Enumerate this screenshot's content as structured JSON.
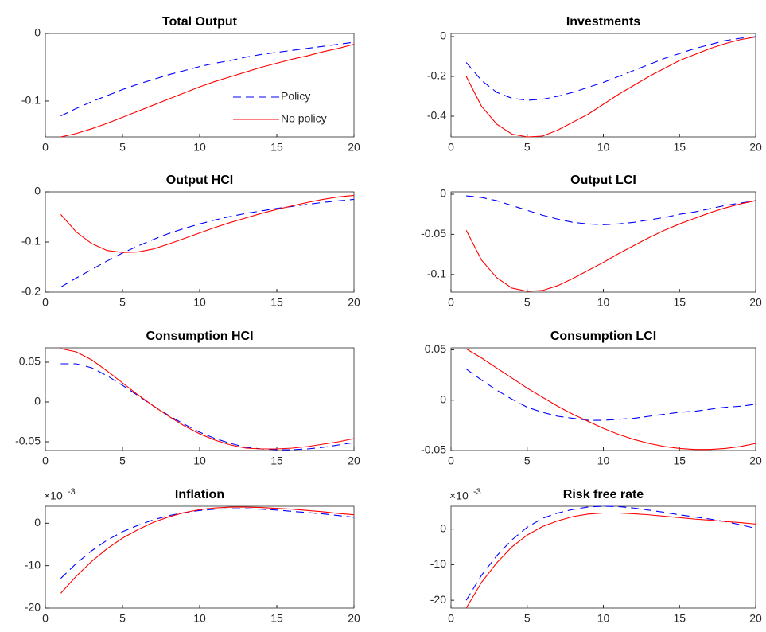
{
  "chart_data": [
    {
      "type": "line",
      "title": "Total Output",
      "x": [
        1,
        2,
        3,
        4,
        5,
        6,
        7,
        8,
        9,
        10,
        11,
        12,
        13,
        14,
        15,
        16,
        17,
        18,
        19,
        20
      ],
      "series": [
        {
          "name": "Policy",
          "color": "#0000ff",
          "dash": "dashed",
          "values": [
            -0.122,
            -0.111,
            -0.101,
            -0.092,
            -0.083,
            -0.075,
            -0.068,
            -0.061,
            -0.055,
            -0.049,
            -0.044,
            -0.04,
            -0.035,
            -0.031,
            -0.028,
            -0.025,
            -0.022,
            -0.019,
            -0.016,
            -0.013
          ]
        },
        {
          "name": "No policy",
          "color": "#ff0000",
          "dash": "solid",
          "values": [
            -0.153,
            -0.148,
            -0.141,
            -0.133,
            -0.124,
            -0.115,
            -0.106,
            -0.097,
            -0.088,
            -0.079,
            -0.071,
            -0.064,
            -0.057,
            -0.05,
            -0.044,
            -0.038,
            -0.033,
            -0.027,
            -0.022,
            -0.016
          ]
        }
      ],
      "xlim": [
        0,
        20
      ],
      "xticks": [
        0,
        5,
        10,
        15,
        20
      ],
      "ylim": [
        -0.153,
        0
      ],
      "yticks": [
        -0.1,
        0
      ],
      "legend": "southeast"
    },
    {
      "type": "line",
      "title": "Investments",
      "x": [
        1,
        2,
        3,
        4,
        5,
        6,
        7,
        8,
        9,
        10,
        11,
        12,
        13,
        14,
        15,
        16,
        17,
        18,
        19,
        20
      ],
      "series": [
        {
          "color": "#0000ff",
          "dash": "dashed",
          "values": [
            -0.13,
            -0.22,
            -0.28,
            -0.31,
            -0.32,
            -0.315,
            -0.3,
            -0.28,
            -0.255,
            -0.23,
            -0.2,
            -0.17,
            -0.14,
            -0.11,
            -0.085,
            -0.06,
            -0.04,
            -0.02,
            -0.008,
            0
          ]
        },
        {
          "color": "#ff0000",
          "dash": "solid",
          "values": [
            -0.2,
            -0.35,
            -0.44,
            -0.49,
            -0.504,
            -0.5,
            -0.47,
            -0.43,
            -0.39,
            -0.34,
            -0.29,
            -0.245,
            -0.2,
            -0.16,
            -0.12,
            -0.09,
            -0.06,
            -0.035,
            -0.015,
            -0.002
          ]
        }
      ],
      "xlim": [
        0,
        20
      ],
      "xticks": [
        0,
        5,
        10,
        15,
        20
      ],
      "ylim": [
        -0.504,
        0.016
      ],
      "yticks": [
        -0.4,
        -0.2,
        0
      ]
    },
    {
      "type": "line",
      "title": "Output HCI",
      "x": [
        1,
        2,
        3,
        4,
        5,
        6,
        7,
        8,
        9,
        10,
        11,
        12,
        13,
        14,
        15,
        16,
        17,
        18,
        19,
        20
      ],
      "series": [
        {
          "color": "#0000ff",
          "dash": "dashed",
          "values": [
            -0.19,
            -0.172,
            -0.155,
            -0.138,
            -0.122,
            -0.108,
            -0.095,
            -0.083,
            -0.073,
            -0.064,
            -0.056,
            -0.049,
            -0.043,
            -0.038,
            -0.033,
            -0.029,
            -0.025,
            -0.021,
            -0.018,
            -0.015
          ]
        },
        {
          "color": "#ff0000",
          "dash": "solid",
          "values": [
            -0.045,
            -0.08,
            -0.103,
            -0.117,
            -0.121,
            -0.12,
            -0.114,
            -0.104,
            -0.093,
            -0.082,
            -0.071,
            -0.061,
            -0.052,
            -0.043,
            -0.035,
            -0.028,
            -0.021,
            -0.015,
            -0.01,
            -0.007
          ]
        }
      ],
      "xlim": [
        0,
        20
      ],
      "xticks": [
        0,
        5,
        10,
        15,
        20
      ],
      "ylim": [
        -0.2,
        0
      ],
      "yticks": [
        -0.2,
        -0.1,
        0
      ]
    },
    {
      "type": "line",
      "title": "Output LCI",
      "x": [
        1,
        2,
        3,
        4,
        5,
        6,
        7,
        8,
        9,
        10,
        11,
        12,
        13,
        14,
        15,
        16,
        17,
        18,
        19,
        20
      ],
      "series": [
        {
          "color": "#0000ff",
          "dash": "dashed",
          "values": [
            -0.002,
            -0.004,
            -0.008,
            -0.014,
            -0.02,
            -0.026,
            -0.031,
            -0.035,
            -0.037,
            -0.038,
            -0.037,
            -0.035,
            -0.032,
            -0.029,
            -0.025,
            -0.022,
            -0.018,
            -0.014,
            -0.011,
            -0.008
          ]
        },
        {
          "color": "#ff0000",
          "dash": "solid",
          "values": [
            -0.045,
            -0.082,
            -0.104,
            -0.117,
            -0.121,
            -0.12,
            -0.114,
            -0.105,
            -0.095,
            -0.085,
            -0.074,
            -0.064,
            -0.054,
            -0.045,
            -0.037,
            -0.03,
            -0.023,
            -0.017,
            -0.012,
            -0.008
          ]
        }
      ],
      "xlim": [
        0,
        20
      ],
      "xticks": [
        0,
        5,
        10,
        15,
        20
      ],
      "ylim": [
        -0.122,
        0.003
      ],
      "yticks": [
        -0.1,
        -0.05,
        0
      ]
    },
    {
      "type": "line",
      "title": "Consumption HCI",
      "x": [
        1,
        2,
        3,
        4,
        5,
        6,
        7,
        8,
        9,
        10,
        11,
        12,
        13,
        14,
        15,
        16,
        17,
        18,
        19,
        20
      ],
      "series": [
        {
          "color": "#0000ff",
          "dash": "dashed",
          "values": [
            0.048,
            0.048,
            0.043,
            0.033,
            0.021,
            0.008,
            -0.005,
            -0.017,
            -0.028,
            -0.038,
            -0.046,
            -0.052,
            -0.057,
            -0.059,
            -0.06,
            -0.06,
            -0.059,
            -0.057,
            -0.054,
            -0.051
          ]
        },
        {
          "color": "#ff0000",
          "dash": "solid",
          "values": [
            0.067,
            0.063,
            0.053,
            0.039,
            0.024,
            0.009,
            -0.005,
            -0.018,
            -0.03,
            -0.04,
            -0.048,
            -0.054,
            -0.058,
            -0.059,
            -0.059,
            -0.058,
            -0.056,
            -0.053,
            -0.05,
            -0.046
          ]
        }
      ],
      "xlim": [
        0,
        20
      ],
      "xticks": [
        0,
        5,
        10,
        15,
        20
      ],
      "ylim": [
        -0.061,
        0.068
      ],
      "yticks": [
        -0.05,
        0,
        0.05
      ]
    },
    {
      "type": "line",
      "title": "Consumption LCI",
      "x": [
        1,
        2,
        3,
        4,
        5,
        6,
        7,
        8,
        9,
        10,
        11,
        12,
        13,
        14,
        15,
        16,
        17,
        18,
        19,
        20
      ],
      "series": [
        {
          "color": "#0000ff",
          "dash": "dashed",
          "values": [
            0.031,
            0.02,
            0.01,
            0.001,
            -0.007,
            -0.012,
            -0.016,
            -0.018,
            -0.02,
            -0.02,
            -0.019,
            -0.018,
            -0.016,
            -0.014,
            -0.012,
            -0.011,
            -0.009,
            -0.007,
            -0.006,
            -0.004
          ]
        },
        {
          "color": "#ff0000",
          "dash": "solid",
          "values": [
            0.051,
            0.042,
            0.032,
            0.022,
            0.012,
            0.003,
            -0.006,
            -0.014,
            -0.021,
            -0.028,
            -0.034,
            -0.039,
            -0.043,
            -0.046,
            -0.048,
            -0.049,
            -0.049,
            -0.048,
            -0.046,
            -0.043
          ]
        }
      ],
      "xlim": [
        0,
        20
      ],
      "xticks": [
        0,
        5,
        10,
        15,
        20
      ],
      "ylim": [
        -0.05,
        0.052
      ],
      "yticks": [
        -0.05,
        0,
        0.05
      ]
    },
    {
      "type": "line",
      "title": "Inflation",
      "x": [
        1,
        2,
        3,
        4,
        5,
        6,
        7,
        8,
        9,
        10,
        11,
        12,
        13,
        14,
        15,
        16,
        17,
        18,
        19,
        20
      ],
      "series": [
        {
          "color": "#0000ff",
          "dash": "dashed",
          "values": [
            -13,
            -9.5,
            -6.5,
            -4,
            -2,
            -0.5,
            0.8,
            1.8,
            2.5,
            3,
            3.3,
            3.4,
            3.4,
            3.3,
            3.1,
            2.8,
            2.5,
            2.2,
            1.8,
            1.4
          ]
        },
        {
          "color": "#ff0000",
          "dash": "solid",
          "values": [
            -16.5,
            -12.5,
            -9,
            -6,
            -3.5,
            -1.5,
            0.2,
            1.5,
            2.5,
            3.2,
            3.6,
            3.8,
            3.8,
            3.7,
            3.5,
            3.3,
            3.0,
            2.7,
            2.3,
            2.0
          ]
        }
      ],
      "xlim": [
        0,
        20
      ],
      "xticks": [
        0,
        5,
        10,
        15,
        20
      ],
      "ylim": [
        -20,
        4
      ],
      "yticks": [
        -20,
        -10,
        0
      ],
      "y_exponent": {
        "base": "×10",
        "power": "-3"
      }
    },
    {
      "type": "line",
      "title": "Risk free rate",
      "x": [
        1,
        2,
        3,
        4,
        5,
        6,
        7,
        8,
        9,
        10,
        11,
        12,
        13,
        14,
        15,
        16,
        17,
        18,
        19,
        20
      ],
      "series": [
        {
          "color": "#0000ff",
          "dash": "dashed",
          "values": [
            -20,
            -13,
            -7.5,
            -3,
            0.5,
            3,
            4.5,
            5.5,
            6.2,
            6.4,
            6.3,
            5.9,
            5.3,
            4.7,
            4,
            3.4,
            2.8,
            2.1,
            1.2,
            0.2
          ]
        },
        {
          "color": "#ff0000",
          "dash": "solid",
          "values": [
            -22.2,
            -15,
            -9.5,
            -5,
            -1.7,
            0.7,
            2.3,
            3.5,
            4.2,
            4.5,
            4.5,
            4.3,
            4.0,
            3.6,
            3.2,
            2.8,
            2.5,
            2.1,
            1.8,
            1.4
          ]
        }
      ],
      "xlim": [
        0,
        20
      ],
      "xticks": [
        0,
        5,
        10,
        15,
        20
      ],
      "ylim": [
        -22.2,
        6.4
      ],
      "yticks": [
        -20,
        -10,
        0
      ],
      "y_exponent": {
        "base": "×10",
        "power": "-3"
      }
    }
  ]
}
